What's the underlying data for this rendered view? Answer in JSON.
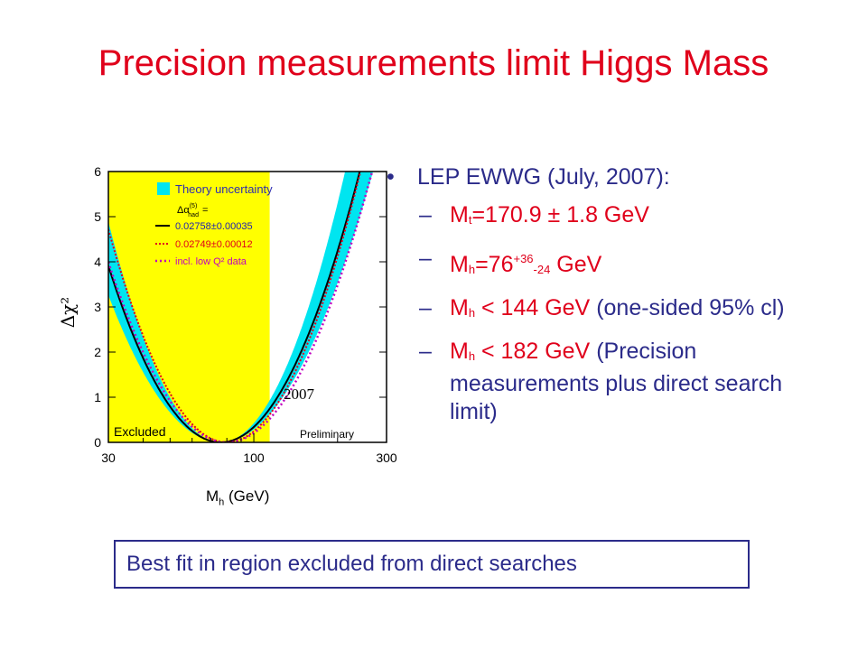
{
  "slide": {
    "title": "Precision measurements limit Higgs Mass"
  },
  "plot": {
    "y_axis_label": "Δχ²",
    "y_ticks": [
      "0",
      "1",
      "2",
      "3",
      "4",
      "5",
      "6"
    ],
    "x_ticks": [
      "30",
      "100",
      "300"
    ],
    "x_axis_label_main": "M",
    "x_axis_label_sub": "h",
    "x_axis_label_unit": " (GeV)",
    "legend": {
      "theory": "Theory uncertainty",
      "delta_alpha_label": "Δα",
      "delta_alpha_super": "(5)",
      "delta_alpha_sub": "had",
      "delta_alpha_eq": "=",
      "series1": "0.02758±0.00035",
      "series2": "0.02749±0.00012",
      "series3": "incl. low Q² data"
    },
    "excluded_label": "Excluded",
    "preliminary_label": "Preliminary",
    "year_label": "2007"
  },
  "chart_data": {
    "type": "line",
    "x_scale": "log",
    "xlim": [
      30,
      300
    ],
    "ylim": [
      0,
      6
    ],
    "x_ticks": [
      30,
      100,
      300
    ],
    "y_ticks": [
      0,
      1,
      2,
      3,
      4,
      5,
      6
    ],
    "excluded_region_upper_gev": 114,
    "series": [
      {
        "name": "0.02758±0.00035",
        "style": "solid",
        "color": "#000000",
        "minimum_x": 76,
        "minimum_y": 0
      },
      {
        "name": "0.02749±0.00012",
        "style": "dotted",
        "color": "#e0001b",
        "minimum_x": 80,
        "minimum_y": 0
      },
      {
        "name": "incl. low Q² data",
        "style": "dotted",
        "color": "#c000c0",
        "minimum_x": 80,
        "minimum_y": 0
      }
    ],
    "colors": {
      "theory_band": "#00e5f0",
      "excluded": "#ffff00"
    }
  },
  "bullets": {
    "main": "LEP EWWG (July, 2007):",
    "items": [
      {
        "pre": "M",
        "sub": "t",
        "post": "=170.9 ± 1.8 GeV"
      },
      {
        "pre": "M",
        "sub": "h",
        "post_a": "=76",
        "sup": "+36",
        "sub2": "-24",
        "post_b": " GeV"
      },
      {
        "pre": "M",
        "sub": "h",
        "post_red": " < 144 GeV ",
        "post_blue": "(one-sided 95% cl)"
      },
      {
        "pre": "M",
        "sub": "h",
        "post_red": " < 182 GeV ",
        "post_blue": "(Precision measurements plus direct search limit)"
      }
    ]
  },
  "footer_box": {
    "text": "Best fit in region excluded from direct searches"
  }
}
